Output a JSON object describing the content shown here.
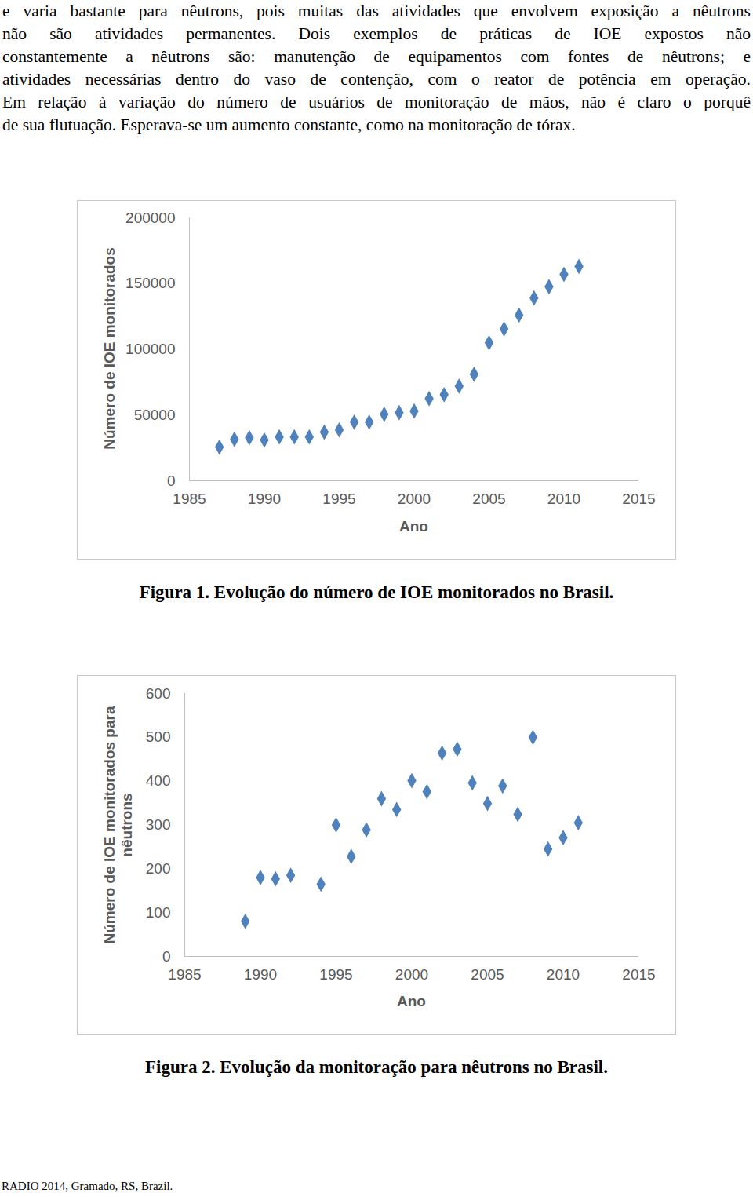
{
  "document": {
    "paragraph_lines": [
      "e varia bastante para nêutrons, pois muitas das atividades que envolvem exposição a nêutrons",
      "não são atividades permanentes. Dois exemplos de práticas de IOE expostos não",
      "constantemente a nêutrons são: manutenção de equipamentos com fontes de nêutrons; e",
      "atividades necessárias dentro do vaso de contenção, com o reator de potência em operação.",
      "Em relação à variação do número de usuários de monitoração de mãos, não é claro o porquê",
      "de sua flutuação. Esperava-se um aumento constante, como na monitoração de tórax."
    ],
    "footer": "RADIO 2014, Gramado, RS, Brazil."
  },
  "chart_data": [
    {
      "type": "scatter",
      "caption": "Figura 1.  Evolução do número de IOE monitorados no Brasil.",
      "xlabel": "Ano",
      "ylabel": "Número de IOE monitorados",
      "x": [
        1987,
        1988,
        1989,
        1990,
        1991,
        1992,
        1993,
        1994,
        1995,
        1996,
        1997,
        1998,
        1999,
        2000,
        2001,
        2002,
        2003,
        2004,
        2005,
        2006,
        2007,
        2008,
        2009,
        2010,
        2011
      ],
      "values": [
        25600,
        31500,
        32700,
        31000,
        33300,
        33300,
        33300,
        37000,
        38700,
        44600,
        44600,
        50600,
        51800,
        53000,
        62500,
        65500,
        72000,
        81000,
        105000,
        115500,
        126000,
        139000,
        147600,
        157000,
        163000
      ],
      "xlim": [
        1985,
        2015
      ],
      "xticks": [
        1985,
        1990,
        1995,
        2000,
        2005,
        2010,
        2015
      ],
      "ylim": [
        0,
        200000
      ],
      "yticks": [
        0,
        50000,
        100000,
        150000,
        200000
      ],
      "color": "#4f81bd",
      "marker": "diamond",
      "grid": false
    },
    {
      "type": "scatter",
      "caption": "Figura 2.  Evolução da monitoração para nêutrons no Brasil.",
      "xlabel": "Ano",
      "ylabel": "Número de IOE monitorados para nêutrons",
      "x": [
        1989,
        1990,
        1991,
        1992,
        1994,
        1995,
        1996,
        1997,
        1998,
        1999,
        2000,
        2001,
        2002,
        2003,
        2004,
        2005,
        2006,
        2007,
        2008,
        2009,
        2010,
        2011
      ],
      "values": [
        80,
        180,
        177,
        185,
        165,
        300,
        228,
        289,
        360,
        335,
        401,
        376,
        464,
        473,
        396,
        349,
        389,
        324,
        500,
        245,
        271,
        305
      ],
      "xlim": [
        1985,
        2015
      ],
      "xticks": [
        1985,
        1990,
        1995,
        2000,
        2005,
        2010,
        2015
      ],
      "ylim": [
        0,
        600
      ],
      "yticks": [
        0,
        100,
        200,
        300,
        400,
        500,
        600
      ],
      "color": "#4f81bd",
      "marker": "diamond",
      "grid": false
    }
  ]
}
